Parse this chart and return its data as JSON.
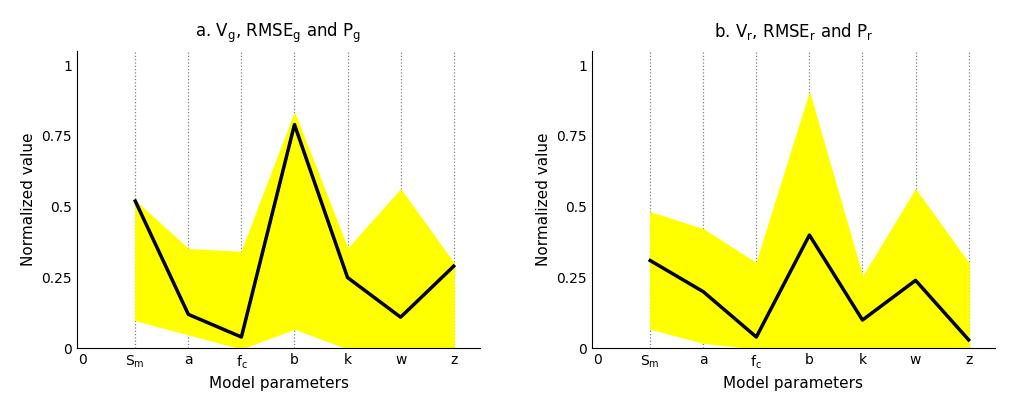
{
  "panel_a": {
    "title": "a. V$_\\mathrm{g}$, RMSE$_\\mathrm{g}$ and P$_\\mathrm{g}$",
    "x_positions": [
      1,
      2,
      3,
      4,
      5,
      6,
      7
    ],
    "x_labels": [
      "S$_\\mathrm{m}$",
      "a",
      "f$_\\mathrm{c}$",
      "b",
      "k",
      "w",
      "z"
    ],
    "median": [
      0.52,
      0.12,
      0.04,
      0.79,
      0.25,
      0.11,
      0.29
    ],
    "upper": [
      0.52,
      0.35,
      0.34,
      0.83,
      0.35,
      0.56,
      0.3
    ],
    "lower": [
      0.1,
      0.05,
      0.0,
      0.07,
      0.0,
      0.0,
      0.0
    ],
    "ylabel": "Normalized value",
    "xlabel": "Model parameters",
    "ylim": [
      0,
      1.05
    ],
    "vline_positions": [
      1,
      2,
      3,
      4,
      5,
      6,
      7
    ]
  },
  "panel_b": {
    "title": "b. V$_\\mathrm{r}$, RMSE$_\\mathrm{r}$ and P$_\\mathrm{r}$",
    "x_positions": [
      1,
      2,
      3,
      4,
      5,
      6,
      7
    ],
    "x_labels": [
      "S$_\\mathrm{m}$",
      "a",
      "f$_\\mathrm{c}$",
      "b",
      "k",
      "w",
      "z"
    ],
    "median": [
      0.31,
      0.2,
      0.04,
      0.4,
      0.1,
      0.24,
      0.03
    ],
    "upper": [
      0.48,
      0.42,
      0.3,
      0.9,
      0.25,
      0.56,
      0.3
    ],
    "lower": [
      0.07,
      0.02,
      0.0,
      0.0,
      0.0,
      0.0,
      0.0
    ],
    "ylabel": "Normalized value",
    "xlabel": "Model parameters",
    "ylim": [
      0,
      1.05
    ],
    "vline_positions": [
      1,
      2,
      3,
      4,
      5,
      6,
      7
    ]
  },
  "fill_color": "#FFFF00",
  "line_color": "#000000",
  "line_width": 2.5,
  "background_color": "#ffffff",
  "figsize": [
    10.16,
    4.12
  ],
  "dpi": 100
}
